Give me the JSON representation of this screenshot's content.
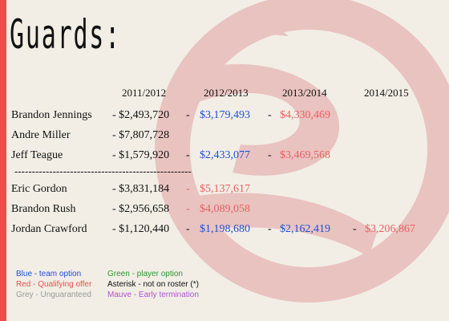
{
  "title": "Guards:",
  "columns": [
    "2011/2012",
    "2012/2013",
    "2013/2014",
    "2014/2015"
  ],
  "rows_group1": [
    {
      "name": "Brandon Jennings",
      "cells": [
        {
          "text": "- $2,493,720",
          "color": "black"
        },
        {
          "text": "$3,179,493",
          "color": "blue",
          "dash": "-",
          "dash_color": "black"
        },
        {
          "text": "$4,330,469",
          "color": "red",
          "dash": "-",
          "dash_color": "black"
        }
      ]
    },
    {
      "name": "Andre Miller",
      "cells": [
        {
          "text": "- $7,807,728",
          "color": "black"
        }
      ]
    },
    {
      "name": "Jeff Teague",
      "cells": [
        {
          "text": "- $1,579,920",
          "color": "black"
        },
        {
          "text": "$2,433,077",
          "color": "blue",
          "dash": "-",
          "dash_color": "black"
        },
        {
          "text": "$3,469,568",
          "color": "red",
          "dash": "-",
          "dash_color": "black"
        }
      ]
    }
  ],
  "separator": "---------------------------------------------------",
  "rows_group2": [
    {
      "name": "Eric Gordon",
      "cells": [
        {
          "text": "- $3,831,184",
          "color": "black"
        },
        {
          "text": "$5,137,617",
          "color": "red",
          "dash": "-",
          "dash_color": "red"
        }
      ]
    },
    {
      "name": "Brandon Rush",
      "cells": [
        {
          "text": "- $2,956,658",
          "color": "black"
        },
        {
          "text": "$4,089,058",
          "color": "red",
          "dash": "-",
          "dash_color": "red"
        }
      ]
    },
    {
      "name": "Jordan Crawford",
      "cells": [
        {
          "text": "- $1,120,440",
          "color": "black"
        },
        {
          "text": "$1,198,680",
          "color": "blue",
          "dash": "-",
          "dash_color": "black"
        },
        {
          "text": "$2,162,419",
          "color": "blue",
          "dash": "-",
          "dash_color": "black"
        },
        {
          "text": "$3,206,867",
          "color": "red",
          "dash": "-",
          "dash_color": "black"
        }
      ]
    }
  ],
  "legend": {
    "blue": {
      "text": "Blue - team option",
      "color": "#1f4fd6"
    },
    "green": {
      "text": "Green - player option",
      "color": "#2a9a2a"
    },
    "red": {
      "text": "Red - Qualifying offer",
      "color": "#e85050"
    },
    "asterisk": {
      "text": "Asterisk - not on roster (*)",
      "color": "#111111"
    },
    "grey": {
      "text": "Grey - Unguaranteed",
      "color": "#9a9a9a"
    },
    "mauve": {
      "text": "Mauve - Early termination",
      "color": "#b04fd0"
    }
  },
  "colors": {
    "background": "#f2eee6",
    "stripe": "#f04c4c",
    "logo": "#e9c3c0"
  }
}
